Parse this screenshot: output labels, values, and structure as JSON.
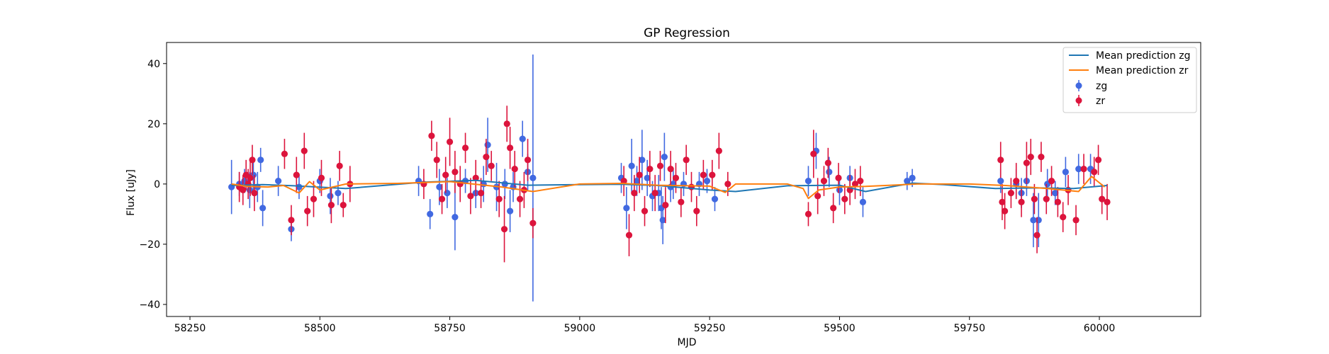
{
  "chart_data": {
    "type": "scatter",
    "title": "GP Regression",
    "xlabel": "MJD",
    "ylabel": "Flux [uJy]",
    "xlim": [
      58205,
      60195
    ],
    "ylim": [
      -44,
      47
    ],
    "xticks": [
      58250,
      58500,
      58750,
      59000,
      59250,
      59500,
      59750,
      60000
    ],
    "yticks": [
      -40,
      -20,
      0,
      20,
      40
    ],
    "grid": false,
    "legend_position": "top-right",
    "legend": [
      {
        "label": "Mean prediction zg",
        "kind": "line",
        "color": "#1f77b4"
      },
      {
        "label": "Mean prediction zr",
        "kind": "line",
        "color": "#ff7f0e"
      },
      {
        "label": "zg",
        "kind": "errorbar",
        "color": "#4169e1"
      },
      {
        "label": "zr",
        "kind": "errorbar",
        "color": "#dc143c"
      }
    ],
    "series": [
      {
        "name": "Mean prediction zg",
        "kind": "line",
        "color": "#1f77b4",
        "x": [
          58330,
          58390,
          58450,
          58550,
          58700,
          58800,
          58900,
          59000,
          59080,
          59150,
          59250,
          59300,
          59400,
          59500,
          59550,
          59640,
          59700,
          59800,
          59880,
          59950,
          60015
        ],
        "y": [
          -0.5,
          -0.2,
          -0.6,
          -1.5,
          0.6,
          1.2,
          -0.4,
          -0.2,
          -0.1,
          -0.5,
          -2.0,
          -2.5,
          -0.6,
          -0.4,
          -2.5,
          0.3,
          -0.2,
          -1.5,
          -1.3,
          -1.5,
          -0.5
        ]
      },
      {
        "name": "Mean prediction zr",
        "kind": "line",
        "color": "#ff7f0e",
        "x": [
          58330,
          58360,
          58400,
          58430,
          58460,
          58480,
          58500,
          58550,
          58650,
          58750,
          58850,
          58910,
          59000,
          59080,
          59150,
          59250,
          59280,
          59300,
          59400,
          59430,
          59440,
          59460,
          59500,
          59550,
          59650,
          59750,
          59820,
          59900,
          59960,
          59985,
          60010
        ],
        "y": [
          0,
          -0.8,
          -1.0,
          -0.5,
          -3.0,
          0.8,
          -2.0,
          0.0,
          0.2,
          0.8,
          -1.0,
          -2.5,
          0.0,
          0.2,
          -0.4,
          -0.7,
          -2.8,
          0.0,
          0.0,
          -1.5,
          -4.8,
          -2.0,
          -1.0,
          -0.8,
          0.0,
          0.0,
          -0.5,
          -1.5,
          -2.5,
          2.5,
          -1.0
        ]
      },
      {
        "name": "zg",
        "kind": "errorbar",
        "color": "#4169e1",
        "points": [
          [
            58330,
            -1,
            9
          ],
          [
            58345,
            0,
            4
          ],
          [
            58355,
            1,
            4
          ],
          [
            58365,
            -2,
            6
          ],
          [
            58372,
            3,
            5
          ],
          [
            58380,
            -1,
            5
          ],
          [
            58386,
            8,
            4
          ],
          [
            58390,
            -8,
            6
          ],
          [
            58420,
            1,
            5
          ],
          [
            58445,
            -15,
            4
          ],
          [
            58460,
            -1,
            4
          ],
          [
            58500,
            1,
            4
          ],
          [
            58520,
            -4,
            6
          ],
          [
            58535,
            -3,
            4
          ],
          [
            58690,
            1,
            5
          ],
          [
            58712,
            -10,
            5
          ],
          [
            58730,
            -1,
            6
          ],
          [
            58745,
            -3,
            5
          ],
          [
            58760,
            -11,
            11
          ],
          [
            58780,
            1,
            4
          ],
          [
            58800,
            -3,
            5
          ],
          [
            58815,
            0,
            6
          ],
          [
            58823,
            13,
            9
          ],
          [
            58840,
            -1,
            8
          ],
          [
            58856,
            0,
            5
          ],
          [
            58866,
            -9,
            7
          ],
          [
            58872,
            -1,
            5
          ],
          [
            58890,
            15,
            6
          ],
          [
            58900,
            4,
            6
          ],
          [
            58910,
            2,
            41
          ],
          [
            59080,
            2,
            5
          ],
          [
            59090,
            -8,
            7
          ],
          [
            59100,
            6,
            9
          ],
          [
            59110,
            1,
            5
          ],
          [
            59120,
            8,
            10
          ],
          [
            59130,
            2,
            6
          ],
          [
            59140,
            -4,
            5
          ],
          [
            59152,
            -3,
            6
          ],
          [
            59157,
            -8,
            7
          ],
          [
            59160,
            -12,
            8
          ],
          [
            59163,
            9,
            8
          ],
          [
            59175,
            -1,
            5
          ],
          [
            59180,
            0,
            5
          ],
          [
            59200,
            0,
            4
          ],
          [
            59230,
            0,
            4
          ],
          [
            59245,
            1,
            4
          ],
          [
            59260,
            -5,
            4
          ],
          [
            59440,
            1,
            5
          ],
          [
            59455,
            11,
            6
          ],
          [
            59480,
            4,
            5
          ],
          [
            59500,
            -2,
            5
          ],
          [
            59520,
            2,
            4
          ],
          [
            59545,
            -6,
            5
          ],
          [
            59630,
            1,
            3
          ],
          [
            59640,
            2,
            3
          ],
          [
            59810,
            1,
            4
          ],
          [
            59840,
            0,
            5
          ],
          [
            59850,
            -3,
            5
          ],
          [
            59860,
            1,
            5
          ],
          [
            59873,
            -12,
            9
          ],
          [
            59883,
            -12,
            9
          ],
          [
            59900,
            0,
            5
          ],
          [
            59915,
            -3,
            4
          ],
          [
            59935,
            4,
            5
          ],
          [
            59960,
            5,
            5
          ],
          [
            59983,
            5,
            5
          ]
        ]
      },
      {
        "name": "zr",
        "kind": "errorbar",
        "color": "#dc143c",
        "points": [
          [
            58345,
            -1,
            5
          ],
          [
            58352,
            -2,
            5
          ],
          [
            58358,
            3,
            5
          ],
          [
            58362,
            0,
            5
          ],
          [
            58366,
            2,
            6
          ],
          [
            58370,
            8,
            5
          ],
          [
            58374,
            -3,
            6
          ],
          [
            58432,
            10,
            5
          ],
          [
            58445,
            -12,
            5
          ],
          [
            58455,
            3,
            6
          ],
          [
            58470,
            11,
            6
          ],
          [
            58476,
            -9,
            5
          ],
          [
            58488,
            -5,
            6
          ],
          [
            58503,
            2,
            6
          ],
          [
            58522,
            -7,
            6
          ],
          [
            58538,
            6,
            5
          ],
          [
            58545,
            -7,
            4
          ],
          [
            58558,
            0,
            6
          ],
          [
            58700,
            0,
            5
          ],
          [
            58715,
            16,
            5
          ],
          [
            58725,
            8,
            6
          ],
          [
            58735,
            -5,
            5
          ],
          [
            58742,
            3,
            6
          ],
          [
            58750,
            14,
            8
          ],
          [
            58760,
            4,
            7
          ],
          [
            58770,
            0,
            6
          ],
          [
            58780,
            12,
            5
          ],
          [
            58790,
            -4,
            6
          ],
          [
            58800,
            2,
            6
          ],
          [
            58810,
            -3,
            5
          ],
          [
            58820,
            9,
            6
          ],
          [
            58830,
            6,
            5
          ],
          [
            58845,
            -5,
            6
          ],
          [
            58855,
            -15,
            11
          ],
          [
            58860,
            20,
            6
          ],
          [
            58866,
            12,
            7
          ],
          [
            58875,
            5,
            6
          ],
          [
            58885,
            -5,
            6
          ],
          [
            58893,
            -2,
            6
          ],
          [
            58900,
            8,
            7
          ],
          [
            58910,
            -13,
            5
          ],
          [
            59085,
            1,
            5
          ],
          [
            59095,
            -17,
            7
          ],
          [
            59105,
            -3,
            6
          ],
          [
            59115,
            3,
            6
          ],
          [
            59125,
            -9,
            5
          ],
          [
            59135,
            5,
            6
          ],
          [
            59145,
            -3,
            6
          ],
          [
            59155,
            6,
            5
          ],
          [
            59165,
            -7,
            6
          ],
          [
            59175,
            5,
            6
          ],
          [
            59185,
            2,
            5
          ],
          [
            59195,
            -6,
            5
          ],
          [
            59205,
            8,
            5
          ],
          [
            59215,
            -1,
            5
          ],
          [
            59225,
            -9,
            5
          ],
          [
            59238,
            3,
            5
          ],
          [
            59255,
            3,
            5
          ],
          [
            59268,
            11,
            6
          ],
          [
            59285,
            0,
            4
          ],
          [
            59440,
            -10,
            4
          ],
          [
            59450,
            10,
            8
          ],
          [
            59458,
            -4,
            6
          ],
          [
            59470,
            1,
            5
          ],
          [
            59478,
            7,
            5
          ],
          [
            59488,
            -8,
            5
          ],
          [
            59498,
            2,
            5
          ],
          [
            59510,
            -5,
            5
          ],
          [
            59520,
            -2,
            5
          ],
          [
            59530,
            0,
            5
          ],
          [
            59540,
            1,
            5
          ],
          [
            59810,
            8,
            6
          ],
          [
            59813,
            -6,
            6
          ],
          [
            59818,
            -9,
            6
          ],
          [
            59830,
            -3,
            5
          ],
          [
            59840,
            1,
            6
          ],
          [
            59850,
            -6,
            5
          ],
          [
            59860,
            7,
            7
          ],
          [
            59868,
            9,
            6
          ],
          [
            59875,
            -5,
            5
          ],
          [
            59880,
            -17,
            6
          ],
          [
            59888,
            9,
            5
          ],
          [
            59898,
            -5,
            5
          ],
          [
            59908,
            1,
            5
          ],
          [
            59920,
            -6,
            5
          ],
          [
            59930,
            -11,
            5
          ],
          [
            59940,
            -2,
            5
          ],
          [
            59955,
            -12,
            5
          ],
          [
            59970,
            5,
            5
          ],
          [
            59990,
            4,
            5
          ],
          [
            59998,
            8,
            5
          ],
          [
            60005,
            -5,
            5
          ],
          [
            60015,
            -6,
            6
          ]
        ]
      }
    ]
  }
}
